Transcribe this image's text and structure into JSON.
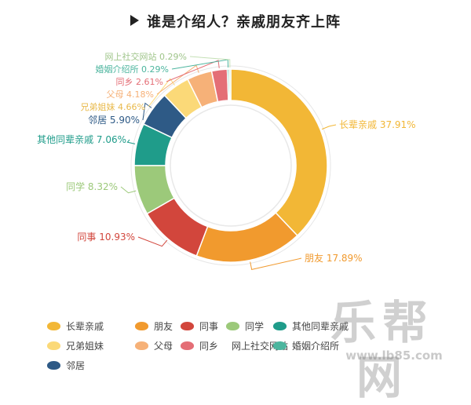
{
  "title": "谁是介绍人？亲戚朋友齐上阵",
  "watermark": "乐帮网",
  "watermark_url": "www.lb85.com",
  "chart_data": {
    "type": "pie",
    "donut": true,
    "slices": [
      {
        "label": "长辈亲戚",
        "value": 37.91,
        "display": "长辈亲戚 37.91%",
        "color": "#f2b736"
      },
      {
        "label": "朋友",
        "value": 17.89,
        "display": "朋友 17.89%",
        "color": "#f19a2e"
      },
      {
        "label": "同事",
        "value": 10.93,
        "display": "同事 10.93%",
        "color": "#d2463c"
      },
      {
        "label": "同学",
        "value": 8.32,
        "display": "同学 8.32%",
        "color": "#9cc97a"
      },
      {
        "label": "其他同辈亲戚",
        "value": 7.06,
        "display": "其他同辈亲戚 7.06%",
        "color": "#1f9c8a"
      },
      {
        "label": "邻居",
        "value": 5.9,
        "display": "邻居 5.90%",
        "color": "#2e5a86"
      },
      {
        "label": "兄弟姐妹",
        "value": 4.66,
        "display": "兄弟姐妹 4.66%",
        "color": "#fbd978"
      },
      {
        "label": "父母",
        "value": 4.18,
        "display": "父母 4.18%",
        "color": "#f6b178"
      },
      {
        "label": "同乡",
        "value": 2.61,
        "display": "同乡 2.61%",
        "color": "#e46e76"
      },
      {
        "label": "婚姻介绍所",
        "value": 0.29,
        "display": "婚姻介绍所 0.29%",
        "color": "#4cb59e"
      },
      {
        "label": "网上社交网站",
        "value": 0.29,
        "display": "网上社交网站 0.29%",
        "color": "#c5e0b6"
      }
    ],
    "legend_order": [
      "长辈亲戚",
      "朋友",
      "同事",
      "同学",
      "其他同辈亲戚",
      "兄弟姐妹",
      "父母",
      "同乡",
      "网上社交网站",
      "婚姻介绍所",
      "邻居"
    ],
    "legend_placement": "bottom"
  }
}
